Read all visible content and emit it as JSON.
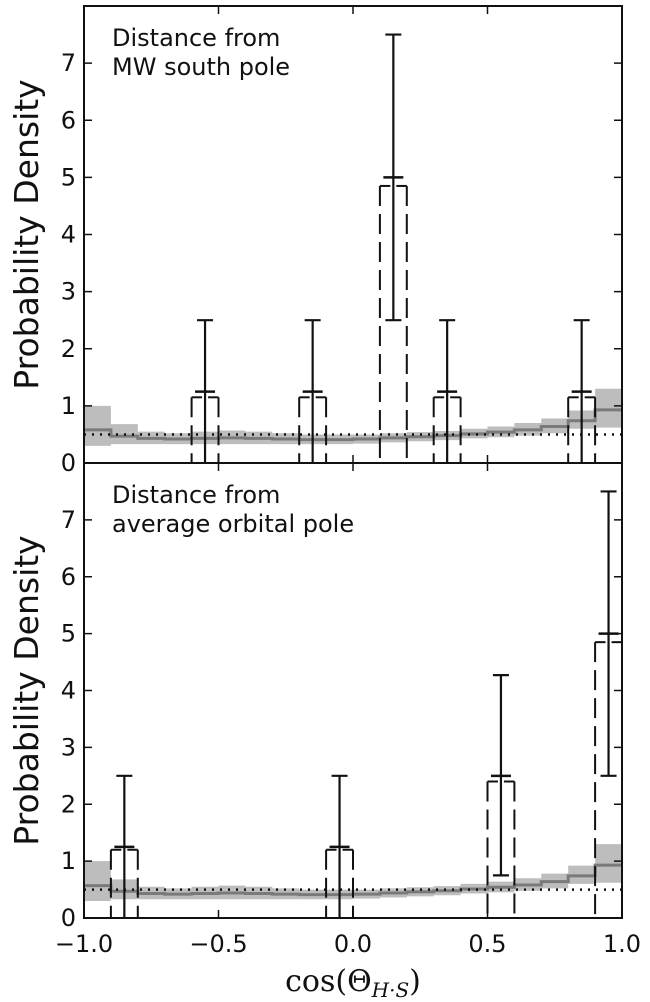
{
  "chart_data": [
    {
      "type": "line",
      "annotation": [
        "Distance from",
        "MW south pole"
      ],
      "ylabel": "Probability Density",
      "xlim": [
        -1.0,
        1.0
      ],
      "ylim": [
        0,
        8
      ],
      "yticks": [
        "0",
        "1",
        "2",
        "3",
        "4",
        "5",
        "6",
        "7"
      ],
      "grid": false,
      "binned_uniform": {
        "edges": [
          -1.0,
          -0.9,
          -0.8,
          -0.7,
          -0.6,
          -0.5,
          -0.4,
          -0.3,
          -0.2,
          -0.1,
          0.0,
          0.1,
          0.2,
          0.3,
          0.4,
          0.5,
          0.6,
          0.7,
          0.8,
          0.9,
          1.0
        ],
        "median": [
          0.58,
          0.47,
          0.43,
          0.42,
          0.43,
          0.44,
          0.43,
          0.42,
          0.41,
          0.41,
          0.42,
          0.44,
          0.46,
          0.48,
          0.51,
          0.54,
          0.58,
          0.64,
          0.74,
          0.93
        ],
        "lo": [
          0.3,
          0.33,
          0.33,
          0.33,
          0.33,
          0.33,
          0.33,
          0.33,
          0.33,
          0.33,
          0.34,
          0.36,
          0.38,
          0.4,
          0.43,
          0.45,
          0.48,
          0.52,
          0.6,
          0.62
        ],
        "hi": [
          1.0,
          0.68,
          0.55,
          0.52,
          0.55,
          0.57,
          0.55,
          0.52,
          0.5,
          0.5,
          0.5,
          0.52,
          0.54,
          0.56,
          0.6,
          0.64,
          0.7,
          0.78,
          0.92,
          1.3
        ]
      },
      "reference_level": 0.5,
      "solid_points": [
        {
          "x": -0.55,
          "y": 1.25,
          "lo": 0.0,
          "hi": 2.5
        },
        {
          "x": -0.15,
          "y": 1.25,
          "lo": 0.0,
          "hi": 2.5
        },
        {
          "x": 0.15,
          "y": 5.0,
          "lo": 2.5,
          "hi": 7.5
        },
        {
          "x": 0.35,
          "y": 1.25,
          "lo": 0.0,
          "hi": 2.5
        },
        {
          "x": 0.85,
          "y": 1.25,
          "lo": 0.0,
          "hi": 2.5
        }
      ],
      "dashed_points": [
        {
          "x": -0.55,
          "y": 1.15,
          "halfwidth": 0.05
        },
        {
          "x": -0.15,
          "y": 1.15,
          "halfwidth": 0.05
        },
        {
          "x": 0.15,
          "y": 4.85,
          "halfwidth": 0.05
        },
        {
          "x": 0.35,
          "y": 1.15,
          "halfwidth": 0.05
        },
        {
          "x": 0.85,
          "y": 1.15,
          "halfwidth": 0.05
        }
      ]
    },
    {
      "type": "line",
      "annotation": [
        "Distance from",
        "average orbital pole"
      ],
      "ylabel": "Probability Density",
      "xlabel": "cos(Θ_{H·S})",
      "xlim": [
        -1.0,
        1.0
      ],
      "ylim": [
        0,
        8
      ],
      "yticks": [
        "0",
        "1",
        "2",
        "3",
        "4",
        "5",
        "6",
        "7"
      ],
      "xticks": [
        "−1.0",
        "−0.5",
        "0.0",
        "0.5",
        "1.0"
      ],
      "grid": false,
      "binned_uniform": {
        "edges": [
          -1.0,
          -0.9,
          -0.8,
          -0.7,
          -0.6,
          -0.5,
          -0.4,
          -0.3,
          -0.2,
          -0.1,
          0.0,
          0.1,
          0.2,
          0.3,
          0.4,
          0.5,
          0.6,
          0.7,
          0.8,
          0.9,
          1.0
        ],
        "median": [
          0.57,
          0.47,
          0.43,
          0.42,
          0.43,
          0.44,
          0.43,
          0.42,
          0.41,
          0.41,
          0.42,
          0.44,
          0.46,
          0.48,
          0.51,
          0.54,
          0.58,
          0.64,
          0.74,
          0.93
        ],
        "lo": [
          0.3,
          0.33,
          0.33,
          0.33,
          0.33,
          0.33,
          0.33,
          0.33,
          0.33,
          0.33,
          0.34,
          0.36,
          0.38,
          0.4,
          0.43,
          0.45,
          0.48,
          0.52,
          0.6,
          0.62
        ],
        "hi": [
          1.0,
          0.68,
          0.55,
          0.52,
          0.55,
          0.57,
          0.55,
          0.52,
          0.5,
          0.5,
          0.5,
          0.52,
          0.54,
          0.56,
          0.6,
          0.64,
          0.7,
          0.78,
          0.92,
          1.3
        ]
      },
      "reference_level": 0.5,
      "solid_points": [
        {
          "x": -0.85,
          "y": 1.25,
          "lo": 0.0,
          "hi": 2.5
        },
        {
          "x": -0.05,
          "y": 1.25,
          "lo": 0.0,
          "hi": 2.5
        },
        {
          "x": 0.55,
          "y": 2.5,
          "lo": 0.75,
          "hi": 4.27
        },
        {
          "x": 0.95,
          "y": 5.0,
          "lo": 2.5,
          "hi": 7.5
        }
      ],
      "dashed_points": [
        {
          "x": -0.85,
          "y": 1.2,
          "halfwidth": 0.05
        },
        {
          "x": -0.05,
          "y": 1.2,
          "halfwidth": 0.05
        },
        {
          "x": 0.55,
          "y": 2.4,
          "halfwidth": 0.05
        },
        {
          "x": 0.95,
          "y": 4.85,
          "halfwidth": 0.05
        }
      ]
    }
  ],
  "colors": {
    "band": "#bdbdbd",
    "median_line": "#7a7a7a",
    "points": "#111111"
  }
}
